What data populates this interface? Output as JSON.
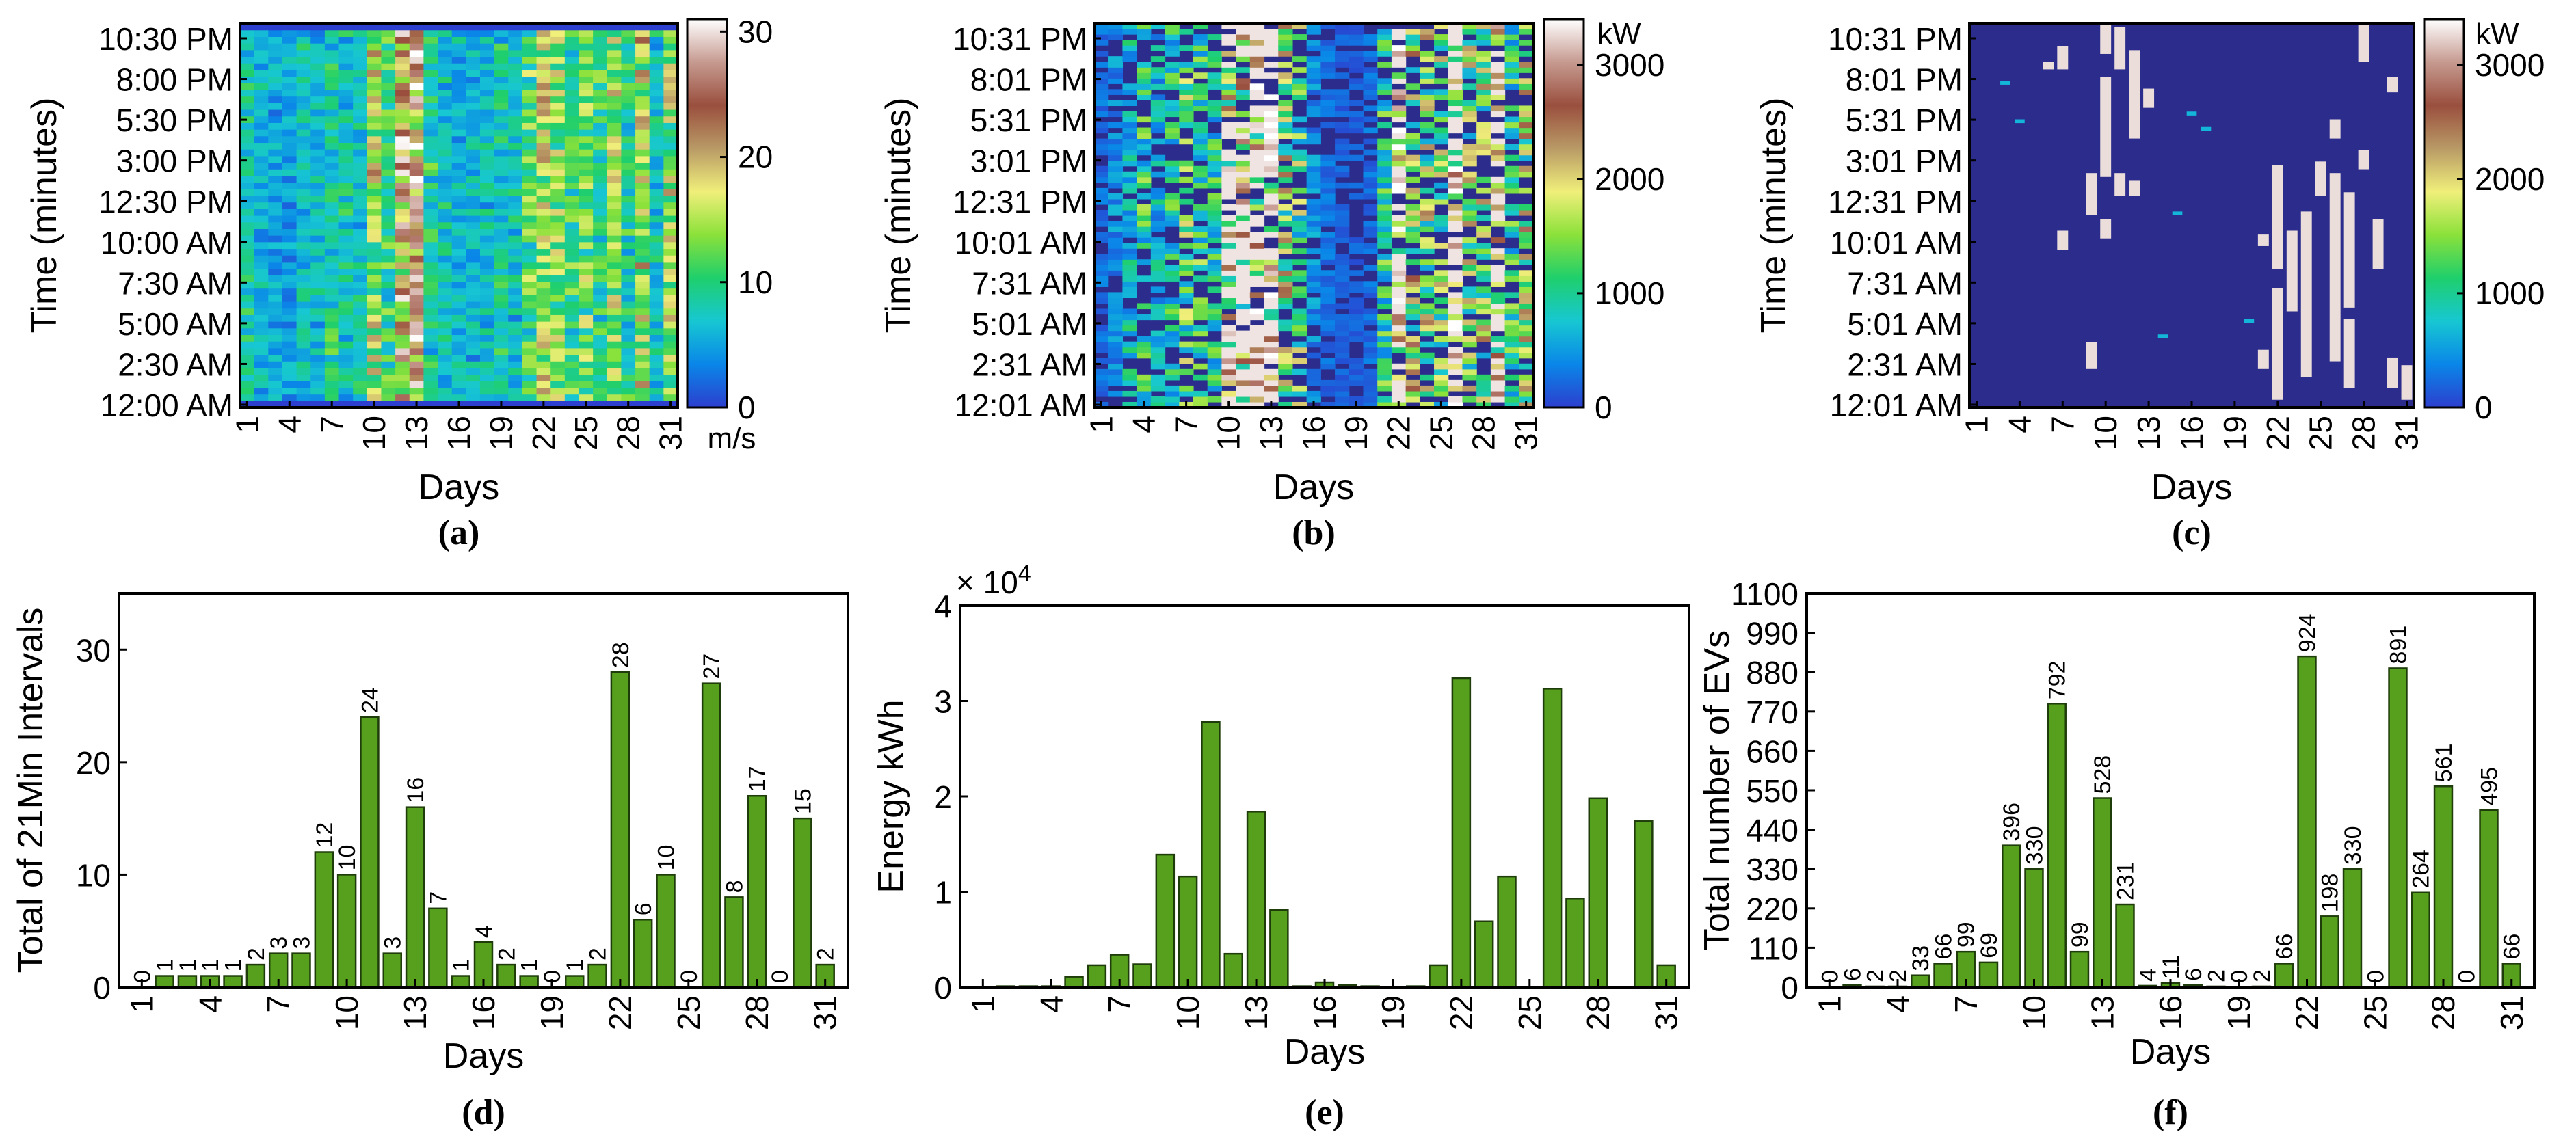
{
  "figure_colors": {
    "bar_fill": "#56a01e",
    "bar_stroke": "#1f3d0a",
    "heatmap_background": "#2b2c8c",
    "colormap": [
      "#2c3fcf",
      "#0a86e8",
      "#17c7d2",
      "#1fcf6c",
      "#8be13a",
      "#f0ef7a",
      "#b99a66",
      "#9a4f3e",
      "#c69a90",
      "#ffffff"
    ]
  },
  "chart_data": [
    {
      "id": "a",
      "type": "heatmap",
      "caption": "(a)",
      "xlabel": "Days",
      "ylabel": "Time (minutes)",
      "x_ticks": [
        "1",
        "4",
        "7",
        "10",
        "13",
        "16",
        "19",
        "22",
        "25",
        "28",
        "31"
      ],
      "y_ticks": [
        "12:00 AM",
        "2:30 AM",
        "5:00 AM",
        "7:30 AM",
        "10:00 AM",
        "12:30 PM",
        "3:00 PM",
        "5:30 PM",
        "8:00 PM",
        "10:30 PM"
      ],
      "colorbar": {
        "min": 0,
        "max": 31,
        "ticks": [
          "0",
          "10",
          "20",
          "30"
        ],
        "unit": "m/s"
      },
      "grid": {
        "days": 31,
        "rows": 58
      },
      "day_profile": [
        8,
        6,
        5,
        5,
        7,
        6,
        9,
        8,
        7,
        15,
        10,
        21,
        22,
        9,
        7,
        6,
        6,
        7,
        8,
        7,
        11,
        15,
        13,
        10,
        12,
        10,
        14,
        9,
        16,
        7,
        14
      ],
      "zero_rows_top": 1,
      "zero_rows_bottom": 1
    },
    {
      "id": "b",
      "type": "heatmap",
      "caption": "(b)",
      "xlabel": "Days",
      "ylabel": "Time (minutes)",
      "x_ticks": [
        "1",
        "4",
        "7",
        "10",
        "13",
        "16",
        "19",
        "22",
        "25",
        "28",
        "31"
      ],
      "y_ticks": [
        "12:01 AM",
        "2:31 AM",
        "5:01 AM",
        "7:31 AM",
        "10:01 AM",
        "12:31 PM",
        "3:01 PM",
        "5:31 PM",
        "8:01 PM",
        "10:31 PM"
      ],
      "colorbar": {
        "min": 0,
        "max": 3400,
        "ticks": [
          "0",
          "1000",
          "2000",
          "3000"
        ],
        "unit": "kW"
      },
      "grid": {
        "days": 31,
        "rows": 70
      },
      "day_profile": [
        300,
        500,
        900,
        1200,
        800,
        1100,
        1500,
        1300,
        1100,
        2400,
        2200,
        2600,
        3000,
        1800,
        1500,
        500,
        300,
        200,
        200,
        300,
        1200,
        2800,
        2000,
        1800,
        1600,
        2900,
        1700,
        1800,
        2200,
        1200,
        2000
      ]
    },
    {
      "id": "c",
      "type": "heatmap",
      "caption": "(c)",
      "xlabel": "Days",
      "ylabel": "Time (minutes)",
      "x_ticks": [
        "1",
        "4",
        "7",
        "10",
        "13",
        "16",
        "19",
        "22",
        "25",
        "28",
        "31"
      ],
      "y_ticks": [
        "12:01 AM",
        "2:31 AM",
        "5:01 AM",
        "7:31 AM",
        "10:01 AM",
        "12:31 PM",
        "3:01 PM",
        "5:31 PM",
        "8:01 PM",
        "10:31 PM"
      ],
      "colorbar": {
        "min": 0,
        "max": 3400,
        "ticks": [
          "0",
          "1000",
          "2000",
          "3000"
        ],
        "unit": "kW"
      },
      "grid": {
        "days": 31,
        "rows": 100
      },
      "day_profile": [
        0,
        0,
        0,
        0,
        0,
        0,
        0,
        2,
        3,
        8,
        6,
        14,
        9,
        10,
        5,
        3,
        0,
        0,
        0,
        0,
        1,
        14,
        7,
        9,
        8,
        14,
        6,
        9,
        10,
        3,
        5
      ],
      "blocks": [
        {
          "day": 6,
          "start": 88,
          "end": 89
        },
        {
          "day": 7,
          "start": 88,
          "end": 93
        },
        {
          "day": 7,
          "start": 41,
          "end": 45
        },
        {
          "day": 9,
          "start": 10,
          "end": 16
        },
        {
          "day": 9,
          "start": 50,
          "end": 60
        },
        {
          "day": 10,
          "start": 60,
          "end": 85
        },
        {
          "day": 10,
          "start": 44,
          "end": 48
        },
        {
          "day": 10,
          "start": 92,
          "end": 99
        },
        {
          "day": 11,
          "start": 88,
          "end": 98
        },
        {
          "day": 11,
          "start": 55,
          "end": 60
        },
        {
          "day": 12,
          "start": 70,
          "end": 92
        },
        {
          "day": 12,
          "start": 55,
          "end": 58
        },
        {
          "day": 13,
          "start": 78,
          "end": 82
        },
        {
          "day": 21,
          "start": 10,
          "end": 14
        },
        {
          "day": 21,
          "start": 42,
          "end": 44
        },
        {
          "day": 22,
          "start": 2,
          "end": 30
        },
        {
          "day": 22,
          "start": 36,
          "end": 62
        },
        {
          "day": 23,
          "start": 25,
          "end": 45
        },
        {
          "day": 24,
          "start": 8,
          "end": 50
        },
        {
          "day": 25,
          "start": 55,
          "end": 63
        },
        {
          "day": 26,
          "start": 12,
          "end": 60
        },
        {
          "day": 26,
          "start": 70,
          "end": 74
        },
        {
          "day": 27,
          "start": 5,
          "end": 22
        },
        {
          "day": 27,
          "start": 26,
          "end": 55
        },
        {
          "day": 28,
          "start": 90,
          "end": 99
        },
        {
          "day": 28,
          "start": 62,
          "end": 66
        },
        {
          "day": 29,
          "start": 36,
          "end": 48
        },
        {
          "day": 30,
          "start": 5,
          "end": 12
        },
        {
          "day": 30,
          "start": 82,
          "end": 85
        },
        {
          "day": 31,
          "start": 2,
          "end": 10
        }
      ],
      "specks": [
        {
          "day": 3,
          "row": 84,
          "v": 650
        },
        {
          "day": 4,
          "row": 74,
          "v": 650
        },
        {
          "day": 16,
          "row": 76,
          "v": 650
        },
        {
          "day": 17,
          "row": 72,
          "v": 650
        },
        {
          "day": 15,
          "row": 50,
          "v": 650
        },
        {
          "day": 14,
          "row": 18,
          "v": 650
        },
        {
          "day": 20,
          "row": 22,
          "v": 650
        }
      ]
    },
    {
      "id": "d",
      "type": "bar",
      "caption": "(d)",
      "xlabel": "Days",
      "ylabel": "Total of 21Min Intervals",
      "ylim": [
        0,
        35
      ],
      "y_ticks": [
        "0",
        "10",
        "20",
        "30"
      ],
      "x_ticks": [
        "1",
        "4",
        "7",
        "10",
        "13",
        "16",
        "19",
        "22",
        "25",
        "28",
        "31"
      ],
      "categories": [
        1,
        2,
        3,
        4,
        5,
        6,
        7,
        8,
        9,
        10,
        11,
        12,
        13,
        14,
        15,
        16,
        17,
        18,
        19,
        20,
        21,
        22,
        23,
        24,
        25,
        26,
        27,
        28,
        29,
        30,
        31
      ],
      "values": [
        0,
        1,
        1,
        1,
        1,
        2,
        3,
        3,
        12,
        10,
        24,
        3,
        16,
        7,
        1,
        4,
        2,
        1,
        0,
        1,
        2,
        28,
        6,
        10,
        0,
        27,
        8,
        17,
        0,
        15,
        2
      ],
      "data_labels": [
        "0",
        "1",
        "1",
        "1",
        "1",
        "2",
        "3",
        "3",
        "12",
        "10",
        "24",
        "3",
        "16",
        "7",
        "1",
        "4",
        "2",
        "1",
        "0",
        "1",
        "2",
        "28",
        "6",
        "10",
        "0",
        "27",
        "8",
        "17",
        "0",
        "15",
        "2"
      ]
    },
    {
      "id": "e",
      "type": "bar",
      "caption": "(e)",
      "xlabel": "Days",
      "ylabel": "Energy kWh",
      "exponent_label": "× 10",
      "exponent_power": "4",
      "ylim": [
        0,
        40000
      ],
      "y_ticks": [
        "0",
        "1",
        "2",
        "3",
        "4"
      ],
      "x_ticks": [
        "1",
        "4",
        "7",
        "10",
        "13",
        "16",
        "19",
        "22",
        "25",
        "28",
        "31"
      ],
      "categories": [
        1,
        2,
        3,
        4,
        5,
        6,
        7,
        8,
        9,
        10,
        11,
        12,
        13,
        14,
        15,
        16,
        17,
        18,
        19,
        20,
        21,
        22,
        23,
        24,
        25,
        26,
        27,
        28,
        29,
        30,
        31
      ],
      "values": [
        0,
        100,
        100,
        100,
        1100,
        2300,
        3400,
        2400,
        13900,
        11600,
        27800,
        3500,
        18400,
        8100,
        100,
        500,
        200,
        100,
        0,
        100,
        2300,
        32400,
        6900,
        11600,
        0,
        31300,
        9300,
        19800,
        0,
        17400,
        2300
      ]
    },
    {
      "id": "f",
      "type": "bar",
      "caption": "(f)",
      "xlabel": "Days",
      "ylabel": "Total number of EVs",
      "ylim": [
        0,
        1100
      ],
      "y_ticks": [
        "0",
        "110",
        "220",
        "330",
        "440",
        "550",
        "660",
        "770",
        "880",
        "990",
        "1100"
      ],
      "x_ticks": [
        "1",
        "4",
        "7",
        "10",
        "13",
        "16",
        "19",
        "22",
        "25",
        "28",
        "31"
      ],
      "categories": [
        1,
        2,
        3,
        4,
        5,
        6,
        7,
        8,
        9,
        10,
        11,
        12,
        13,
        14,
        15,
        16,
        17,
        18,
        19,
        20,
        21,
        22,
        23,
        24,
        25,
        26,
        27,
        28,
        29,
        30,
        31
      ],
      "values": [
        0,
        6,
        2,
        2,
        33,
        66,
        99,
        69,
        396,
        330,
        792,
        99,
        528,
        231,
        4,
        11,
        6,
        2,
        0,
        2,
        66,
        924,
        198,
        330,
        0,
        891,
        264,
        561,
        0,
        495,
        66
      ],
      "data_labels": [
        "0",
        "6",
        "2",
        "2",
        "33",
        "66",
        "99",
        "69",
        "396",
        "330",
        "792",
        "99",
        "528",
        "231",
        "4",
        "11",
        "6",
        "2",
        "0",
        "2",
        "66",
        "924",
        "198",
        "330",
        "0",
        "891",
        "264",
        "561",
        "0",
        "495",
        "66"
      ]
    }
  ]
}
